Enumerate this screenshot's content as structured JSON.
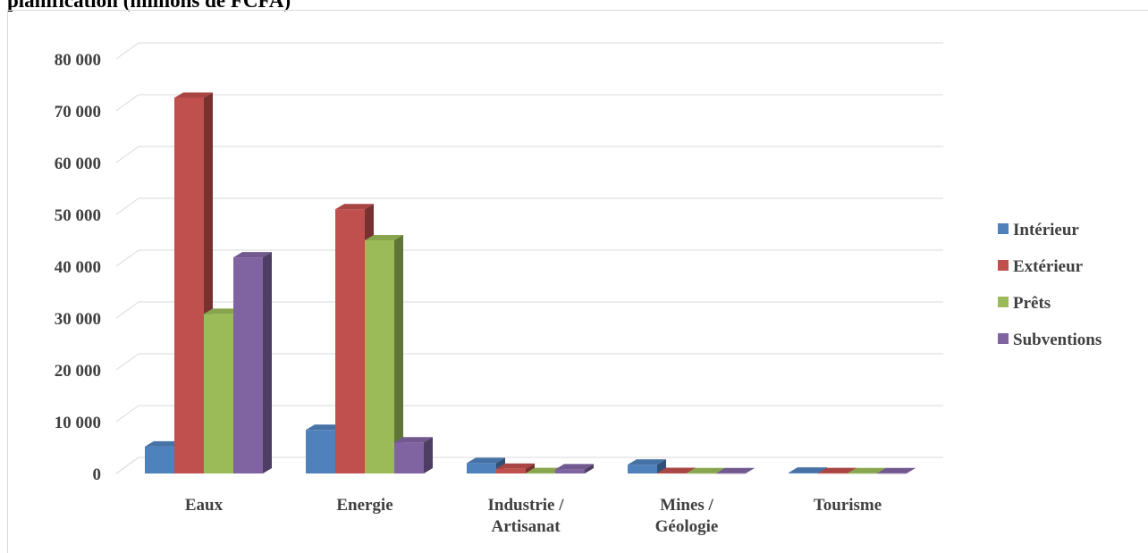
{
  "title": "planification (millions de FCFA)",
  "chart_data": {
    "type": "bar",
    "title": "planification (millions de FCFA)",
    "categories": [
      [
        "Eaux"
      ],
      [
        "Energie"
      ],
      [
        "Industrie /",
        "Artisanat"
      ],
      [
        "Mines /",
        "Géologie"
      ],
      [
        "Tourisme"
      ]
    ],
    "series": [
      {
        "name": "Intérieur",
        "color": "#4f81bd",
        "values": [
          5200,
          8400,
          2000,
          1700,
          150
        ]
      },
      {
        "name": "Extérieur",
        "color": "#c0504d",
        "values": [
          72500,
          51000,
          900,
          80,
          60
        ]
      },
      {
        "name": "Prêts",
        "color": "#9bbb59",
        "values": [
          30800,
          45000,
          60,
          40,
          40
        ]
      },
      {
        "name": "Subventions",
        "color": "#8064a2",
        "values": [
          41700,
          6000,
          800,
          40,
          40
        ]
      }
    ],
    "yticks": [
      "0",
      "10 000",
      "20 000",
      "30 000",
      "40 000",
      "50 000",
      "60 000",
      "70 000",
      "80 000"
    ],
    "ylim": [
      0,
      80000
    ],
    "grid": true,
    "legend_position": "right",
    "style": "3d-clustered-column"
  }
}
